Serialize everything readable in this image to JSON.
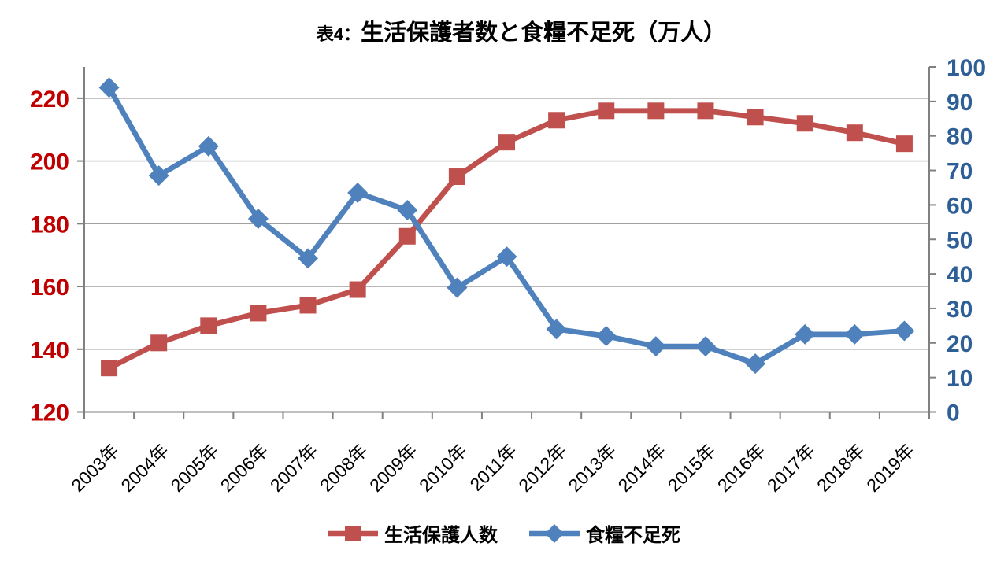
{
  "chart_data": {
    "type": "line",
    "title": {
      "prefix": "表4：",
      "main": "生活保護者数と食糧不足死（万人）"
    },
    "categories": [
      "2003年",
      "2004年",
      "2005年",
      "2006年",
      "2007年",
      "2008年",
      "2009年",
      "2010年",
      "2011年",
      "2012年",
      "2013年",
      "2014年",
      "2015年",
      "2016年",
      "2017年",
      "2018年",
      "2019年"
    ],
    "series": [
      {
        "name": "生活保護人数",
        "axis": "left",
        "color": "#C0504D",
        "marker": "square",
        "values": [
          134,
          142,
          147.5,
          151.5,
          154,
          159,
          176,
          195,
          206,
          213,
          216,
          216,
          216,
          214,
          212,
          209,
          205.5
        ]
      },
      {
        "name": "食糧不足死",
        "axis": "right",
        "color": "#4F81BD",
        "marker": "diamond",
        "values": [
          94,
          68.5,
          77,
          56,
          44.5,
          63.5,
          58.5,
          36,
          45,
          24,
          22,
          19,
          19,
          14,
          22.5,
          22.5,
          23.5
        ]
      }
    ],
    "axes": {
      "left": {
        "min": 120,
        "max": 230,
        "ticks": [
          120,
          140,
          160,
          180,
          200,
          220
        ],
        "label_color": "#C00000"
      },
      "right": {
        "min": 0,
        "max": 100,
        "ticks": [
          0,
          10,
          20,
          30,
          40,
          50,
          60,
          70,
          80,
          90,
          100
        ],
        "label_color": "#2E5F96"
      },
      "x": {
        "label_color": "#000000"
      }
    },
    "grid": true,
    "legend_position": "bottom",
    "colors": {
      "gridline": "#A0A0A0",
      "axis_line": "#808080"
    }
  }
}
